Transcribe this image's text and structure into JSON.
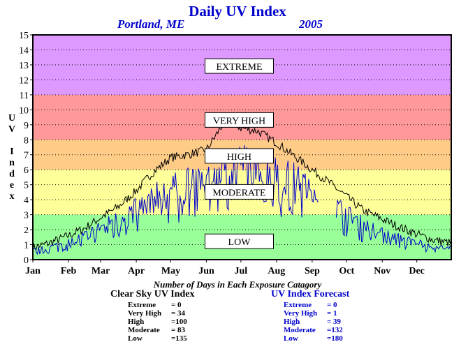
{
  "chart_data": {
    "type": "line",
    "title": "Daily UV Index",
    "location": "Portland, ME",
    "year": "2005",
    "ylabel": "UV Index",
    "ylim": [
      0,
      15
    ],
    "yticks": [
      0,
      1,
      2,
      3,
      4,
      5,
      6,
      7,
      8,
      9,
      10,
      11,
      12,
      13,
      14,
      15
    ],
    "months": [
      "Jan",
      "Feb",
      "Mar",
      "Apr",
      "May",
      "Jun",
      "Jul",
      "Aug",
      "Sep",
      "Oct",
      "Nov",
      "Dec"
    ],
    "bands": [
      {
        "name": "LOW",
        "from": 0,
        "to": 3,
        "color": "#99ff99"
      },
      {
        "name": "MODERATE",
        "from": 3,
        "to": 6,
        "color": "#ffff99"
      },
      {
        "name": "HIGH",
        "from": 6,
        "to": 8,
        "color": "#ffcc88"
      },
      {
        "name": "VERY HIGH",
        "from": 8,
        "to": 11,
        "color": "#ff9999"
      },
      {
        "name": "EXTREME",
        "from": 11,
        "to": 15,
        "color": "#dd99ff"
      }
    ],
    "band_label_values": [
      1.2,
      4.5,
      6.9,
      9.3,
      12.9
    ],
    "series": [
      {
        "name": "Clear Sky UV Index",
        "color": "#000000",
        "day_anchors": [
          1,
          15,
          32,
          46,
          60,
          75,
          91,
          105,
          121,
          135,
          152,
          166,
          172,
          182,
          196,
          213,
          227,
          244,
          258,
          274,
          288,
          305,
          319,
          335,
          350,
          365
        ],
        "value_anchors": [
          0.8,
          1.1,
          1.6,
          2.1,
          2.8,
          3.5,
          4.6,
          5.8,
          6.8,
          7.0,
          7.3,
          9.0,
          9.2,
          8.8,
          8.6,
          7.8,
          7.0,
          6.0,
          5.2,
          4.2,
          3.3,
          2.7,
          2.2,
          1.7,
          1.3,
          1.1
        ],
        "noise": 0.3
      },
      {
        "name": "UV Index Forecast",
        "color": "#0000cc",
        "day_anchors": [
          1,
          15,
          32,
          46,
          60,
          75,
          91,
          105,
          121,
          135,
          152,
          166,
          182,
          196,
          213,
          227,
          244,
          258,
          274,
          288,
          305,
          319,
          335,
          350,
          365
        ],
        "value_anchors": [
          0.7,
          0.9,
          1.3,
          1.8,
          2.4,
          3.0,
          3.8,
          4.6,
          5.2,
          5.6,
          6.2,
          7.0,
          7.2,
          6.8,
          6.4,
          6.0,
          5.2,
          4.3,
          3.4,
          2.6,
          2.0,
          1.6,
          1.3,
          1.0,
          0.9
        ],
        "low_factor": 0.45,
        "missing_days": [
          [
            250,
            264
          ]
        ]
      }
    ]
  },
  "caption": "Number of Days in Each Exposure Catagory",
  "stats_clear": {
    "title": "Clear Sky UV Index",
    "rows": [
      {
        "label": "Extreme",
        "value": "=   0"
      },
      {
        "label": "Very High",
        "value": "= 34"
      },
      {
        "label": "High",
        "value": "=100"
      },
      {
        "label": "Moderate",
        "value": "= 83"
      },
      {
        "label": "Low",
        "value": "=135"
      }
    ]
  },
  "stats_forecast": {
    "title": "UV Index Forecast",
    "rows": [
      {
        "label": "Extreme",
        "value": "=   0"
      },
      {
        "label": "Very High",
        "value": "=   1"
      },
      {
        "label": "High",
        "value": "= 39"
      },
      {
        "label": "Moderate",
        "value": "=132"
      },
      {
        "label": "Low",
        "value": "=180"
      }
    ]
  }
}
